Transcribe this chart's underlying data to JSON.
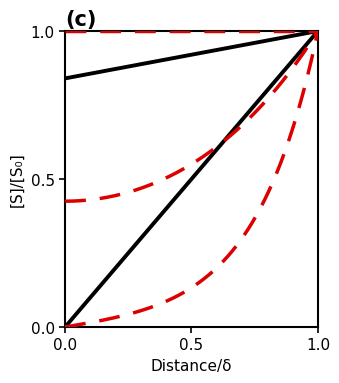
{
  "title": "(c)",
  "xlabel": "Distance/δ",
  "ylabel": "[S]/[S₀]",
  "xlim": [
    0,
    1.0
  ],
  "ylim": [
    0,
    1.0
  ],
  "xticks": [
    0,
    0.5,
    1.0
  ],
  "yticks": [
    0,
    0.5,
    1.0
  ],
  "black_line2_y0": 0.84,
  "thiele_high": 4.0,
  "thiele_low": 1.5,
  "line_color_black": "#000000",
  "line_color_red": "#dd0000",
  "linewidth_black": 2.8,
  "linewidth_red": 2.5,
  "background": "#ffffff",
  "title_fontsize": 15,
  "label_fontsize": 11,
  "tick_fontsize": 11
}
